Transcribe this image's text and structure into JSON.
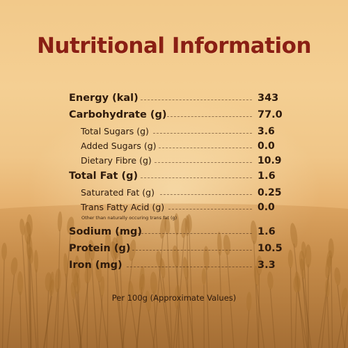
{
  "title": "Nutritional Information",
  "rows": [
    {
      "label": "Energy (kal)",
      "value": "343"
    },
    {
      "label": "Carbohydrate (g)",
      "value": "77.0"
    },
    {
      "label": "Total Sugars (g)",
      "value": "3.6"
    },
    {
      "label": "Added Sugars (g)",
      "value": "0.0"
    },
    {
      "label": "Dietary Fibre (g)",
      "value": "10.9"
    },
    {
      "label": "Total Fat (g)",
      "value": "1.6"
    },
    {
      "label": "Saturated Fat (g)",
      "value": "0.25"
    },
    {
      "label": "Trans Fatty Acid (g)",
      "value": "0.0"
    },
    {
      "label": "Sodium (mg)",
      "value": "1.6"
    },
    {
      "label": "Protein (g)",
      "value": "10.5"
    },
    {
      "label": "Iron (mg)",
      "value": "3.3"
    }
  ],
  "trans_fat_note": "Other than naturally occuring trans fat (g)",
  "footer": "Per 100g (Approximate Values)"
}
